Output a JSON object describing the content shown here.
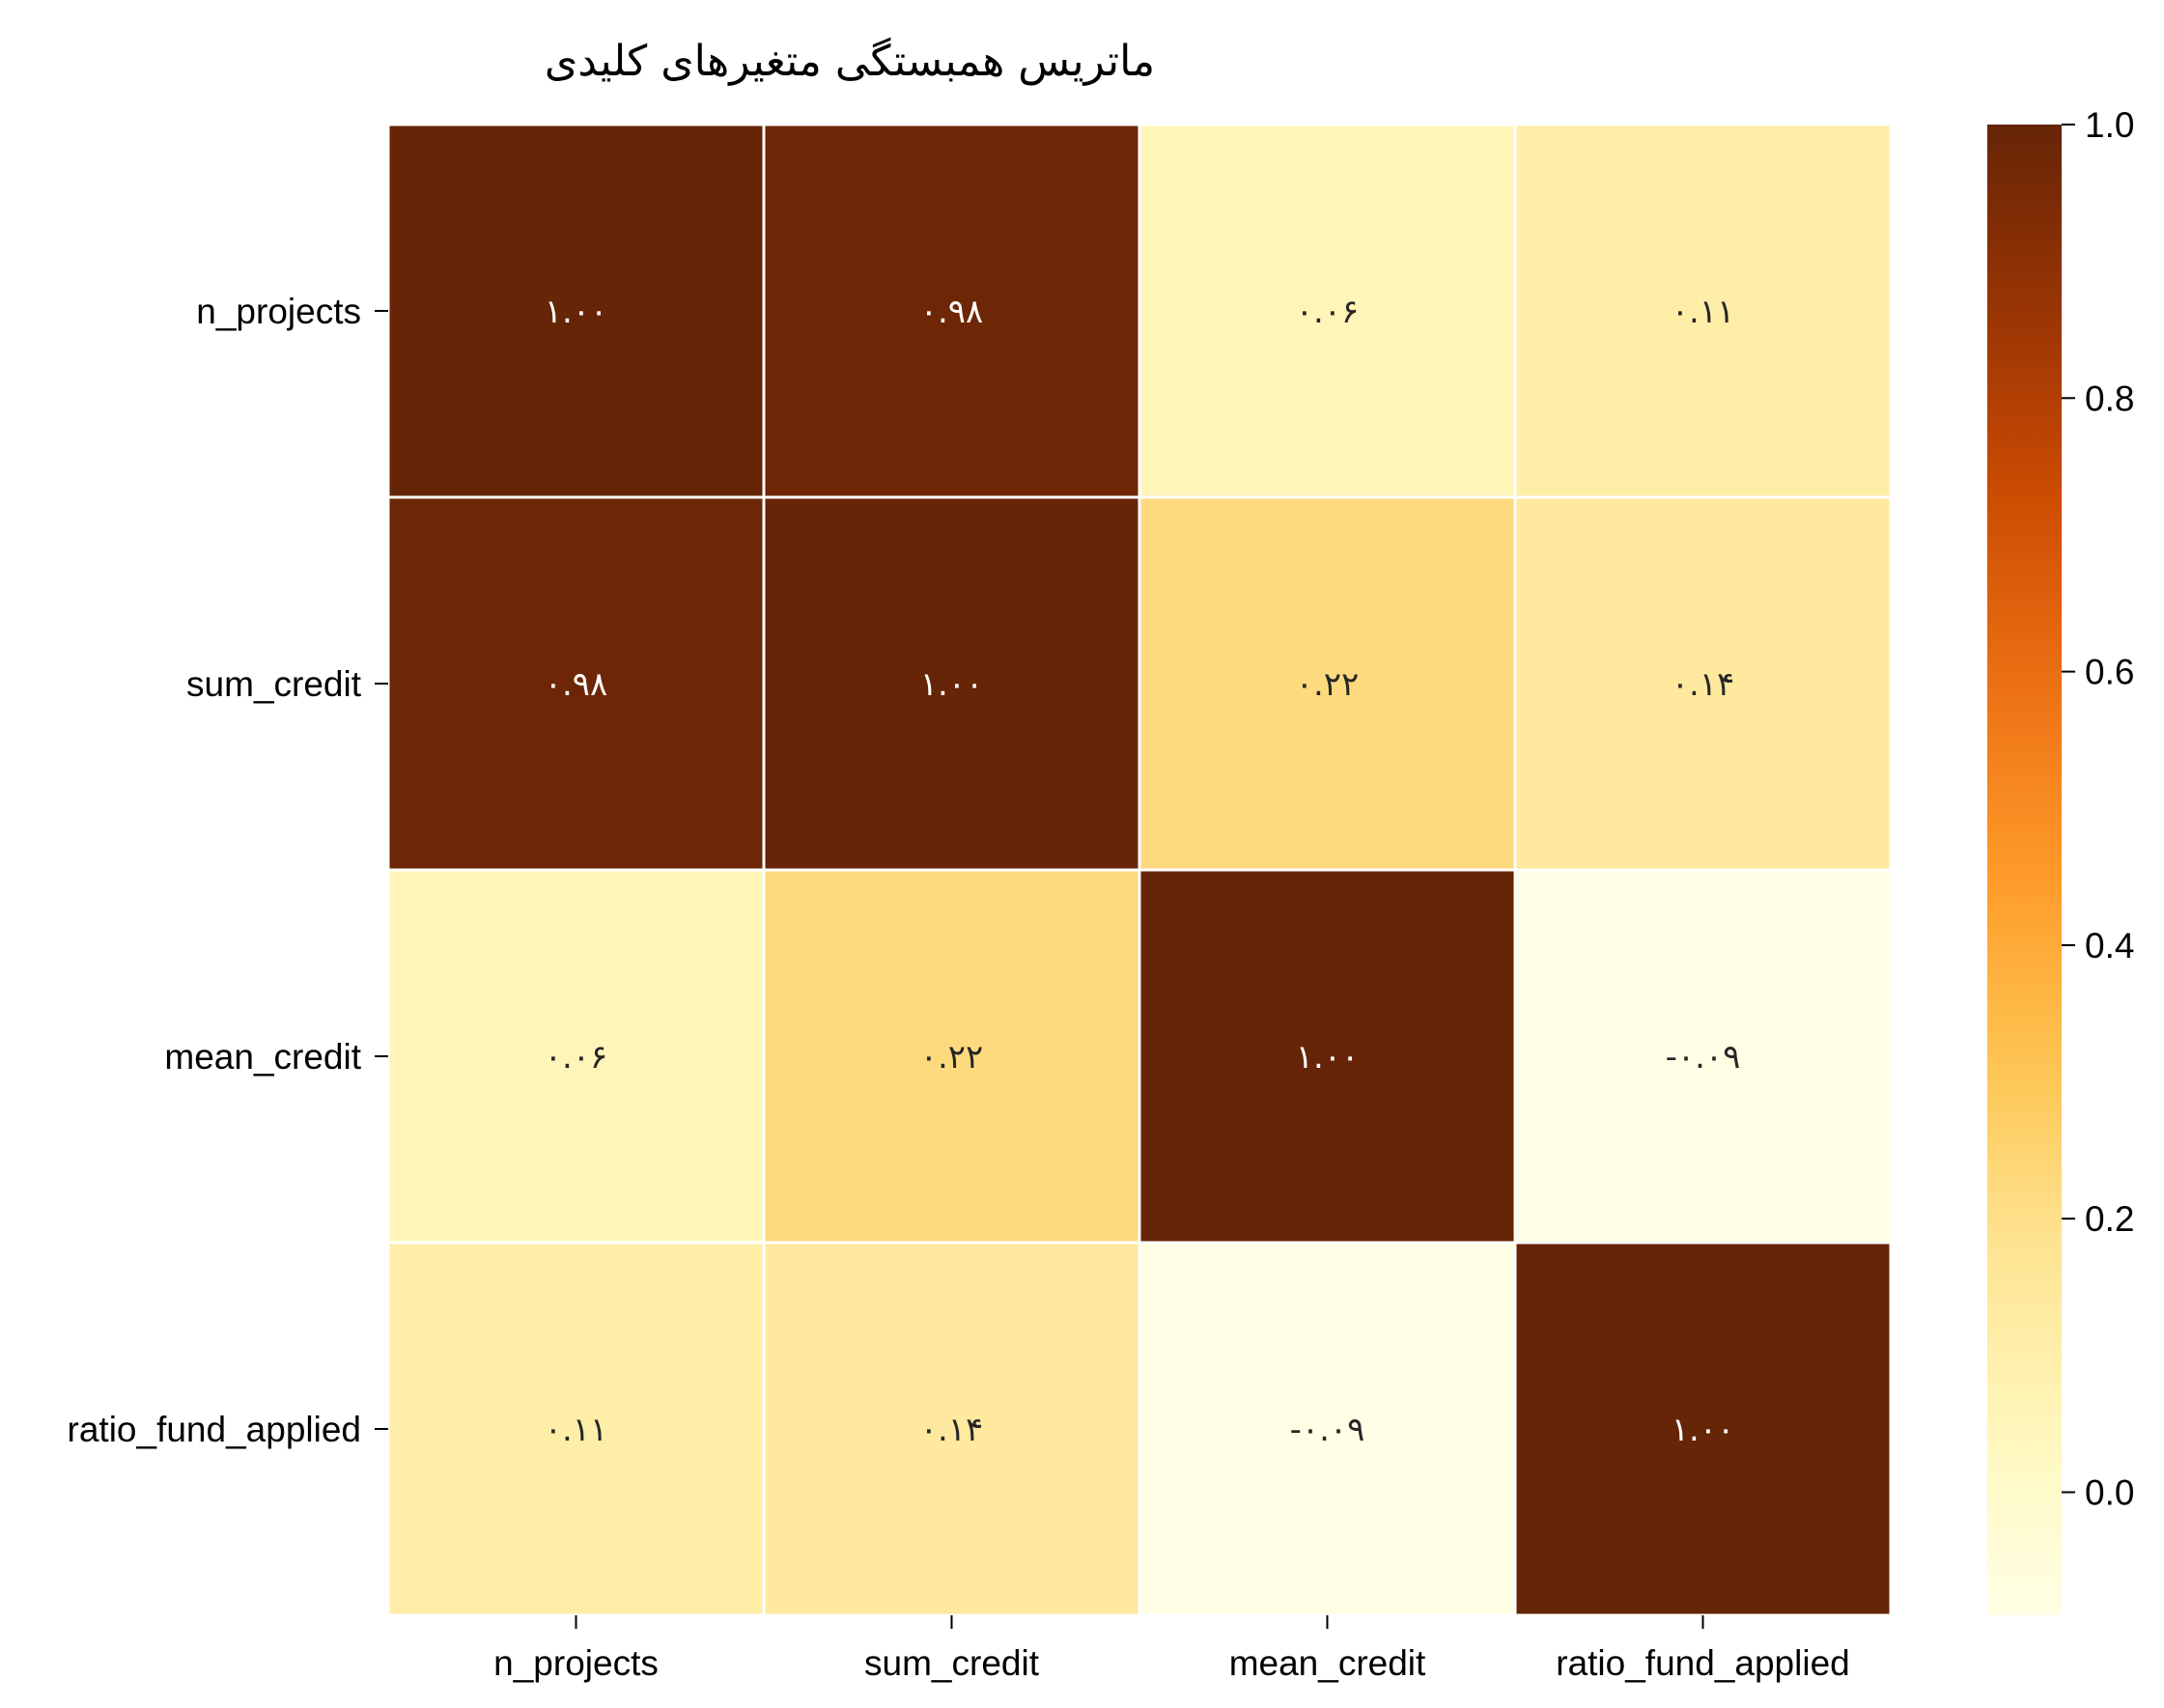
{
  "chart_data": {
    "type": "heatmap",
    "title": "ماتریس همبستگی متغیرهای کلیدی",
    "rows": [
      "n_projects",
      "sum_credit",
      "mean_credit",
      "ratio_fund_applied"
    ],
    "columns": [
      "n_projects",
      "sum_credit",
      "mean_credit",
      "ratio_fund_applied"
    ],
    "values": [
      [
        1.0,
        0.98,
        0.06,
        0.11
      ],
      [
        0.98,
        1.0,
        0.22,
        0.14
      ],
      [
        0.06,
        0.22,
        1.0,
        -0.09
      ],
      [
        0.11,
        0.14,
        -0.09,
        1.0
      ]
    ],
    "annotations": [
      [
        "۱.۰۰",
        "۰.۹۸",
        "۰.۰۶",
        "۰.۱۱"
      ],
      [
        "۰.۹۸",
        "۱.۰۰",
        "۰.۲۲",
        "۰.۱۴"
      ],
      [
        "۰.۰۶",
        "۰.۲۲",
        "۱.۰۰",
        "-۰.۰۹"
      ],
      [
        "۰.۱۱",
        "۰.۱۴",
        "-۰.۰۹",
        "۱.۰۰"
      ]
    ],
    "colorscale": "YlOrBr",
    "vmin": -0.09,
    "vmax": 1.0,
    "colorbar": {
      "ticks": [
        0.0,
        0.2,
        0.4,
        0.6,
        0.8,
        1.0
      ],
      "tick_labels": [
        "0.0",
        "0.2",
        "0.4",
        "0.6",
        "0.8",
        "1.0"
      ]
    },
    "grid_line_color": "#ffffff"
  }
}
